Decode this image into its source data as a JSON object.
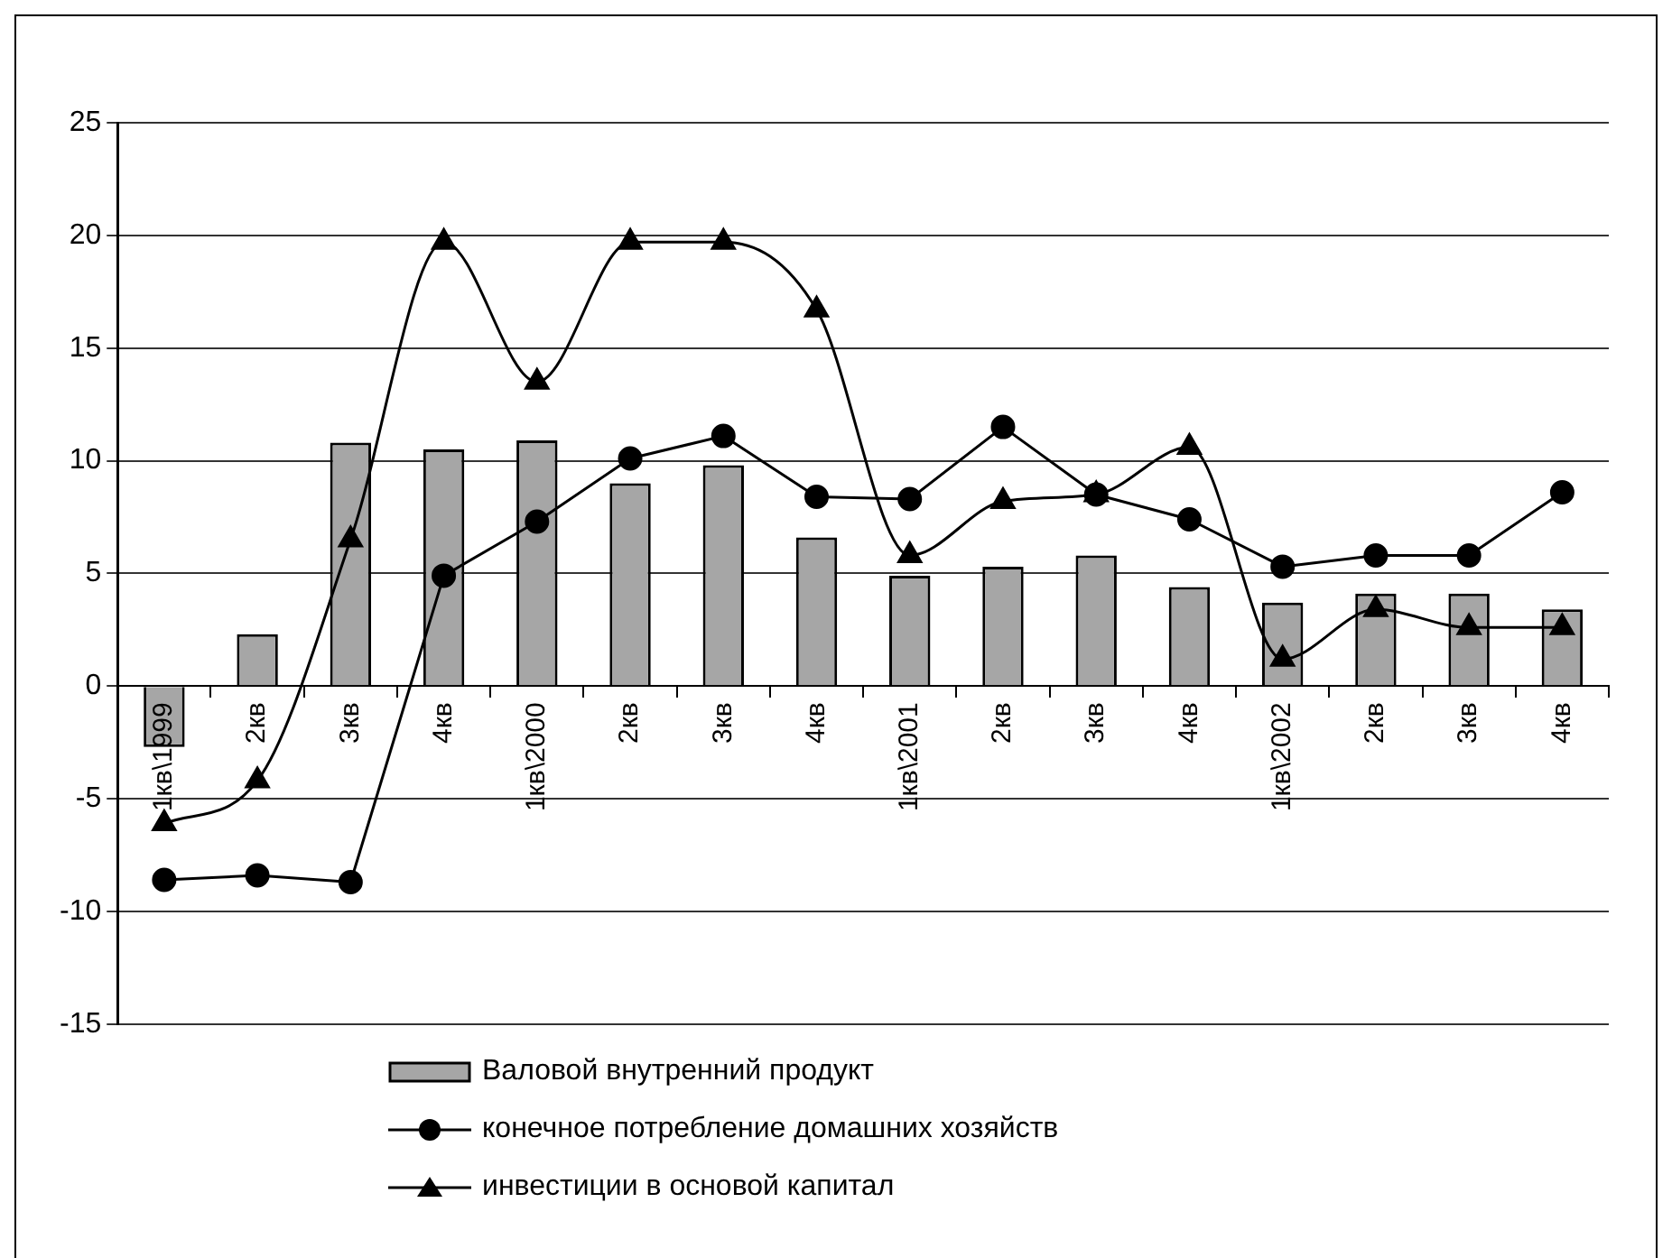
{
  "chart_data": {
    "type": "bar",
    "categories": [
      "1кв\\1999",
      "2кв",
      "3кв",
      "4кв",
      "1кв\\2000",
      "2кв",
      "3кв",
      "4кв",
      "1кв\\2001",
      "2кв",
      "3кв",
      "4кв",
      "1кв\\2002",
      "2кв",
      "3кв",
      "4кв"
    ],
    "series": [
      {
        "name": "Валовой внутренний продукт",
        "color": "#a6a6a6",
        "values": [
          -2.7,
          2.3,
          10.8,
          10.5,
          10.9,
          9.0,
          9.8,
          6.6,
          4.9,
          5.3,
          5.8,
          4.4,
          3.7,
          4.1,
          4.1,
          3.4
        ]
      },
      {
        "name": "конечное потребление  домашних хозяйств",
        "type": "line",
        "color": "#000000",
        "marker": "circle",
        "values": [
          -8.6,
          -8.4,
          -8.7,
          4.9,
          7.3,
          10.1,
          11.1,
          8.4,
          8.3,
          11.5,
          8.5,
          7.4,
          5.3,
          5.8,
          5.8,
          8.6
        ]
      },
      {
        "name": "инвестиции в основой капитал",
        "type": "line",
        "color": "#000000",
        "marker": "triangle",
        "values": [
          -6.1,
          -4.2,
          6.5,
          19.7,
          13.5,
          19.7,
          19.7,
          16.7,
          5.8,
          8.2,
          8.5,
          10.6,
          1.2,
          3.4,
          2.6,
          2.6
        ]
      }
    ],
    "ylim": [
      -15,
      25
    ],
    "yticks": [
      -15,
      -10,
      -5,
      0,
      5,
      10,
      15,
      20,
      25
    ],
    "grid": "y",
    "legend": "bottom"
  }
}
